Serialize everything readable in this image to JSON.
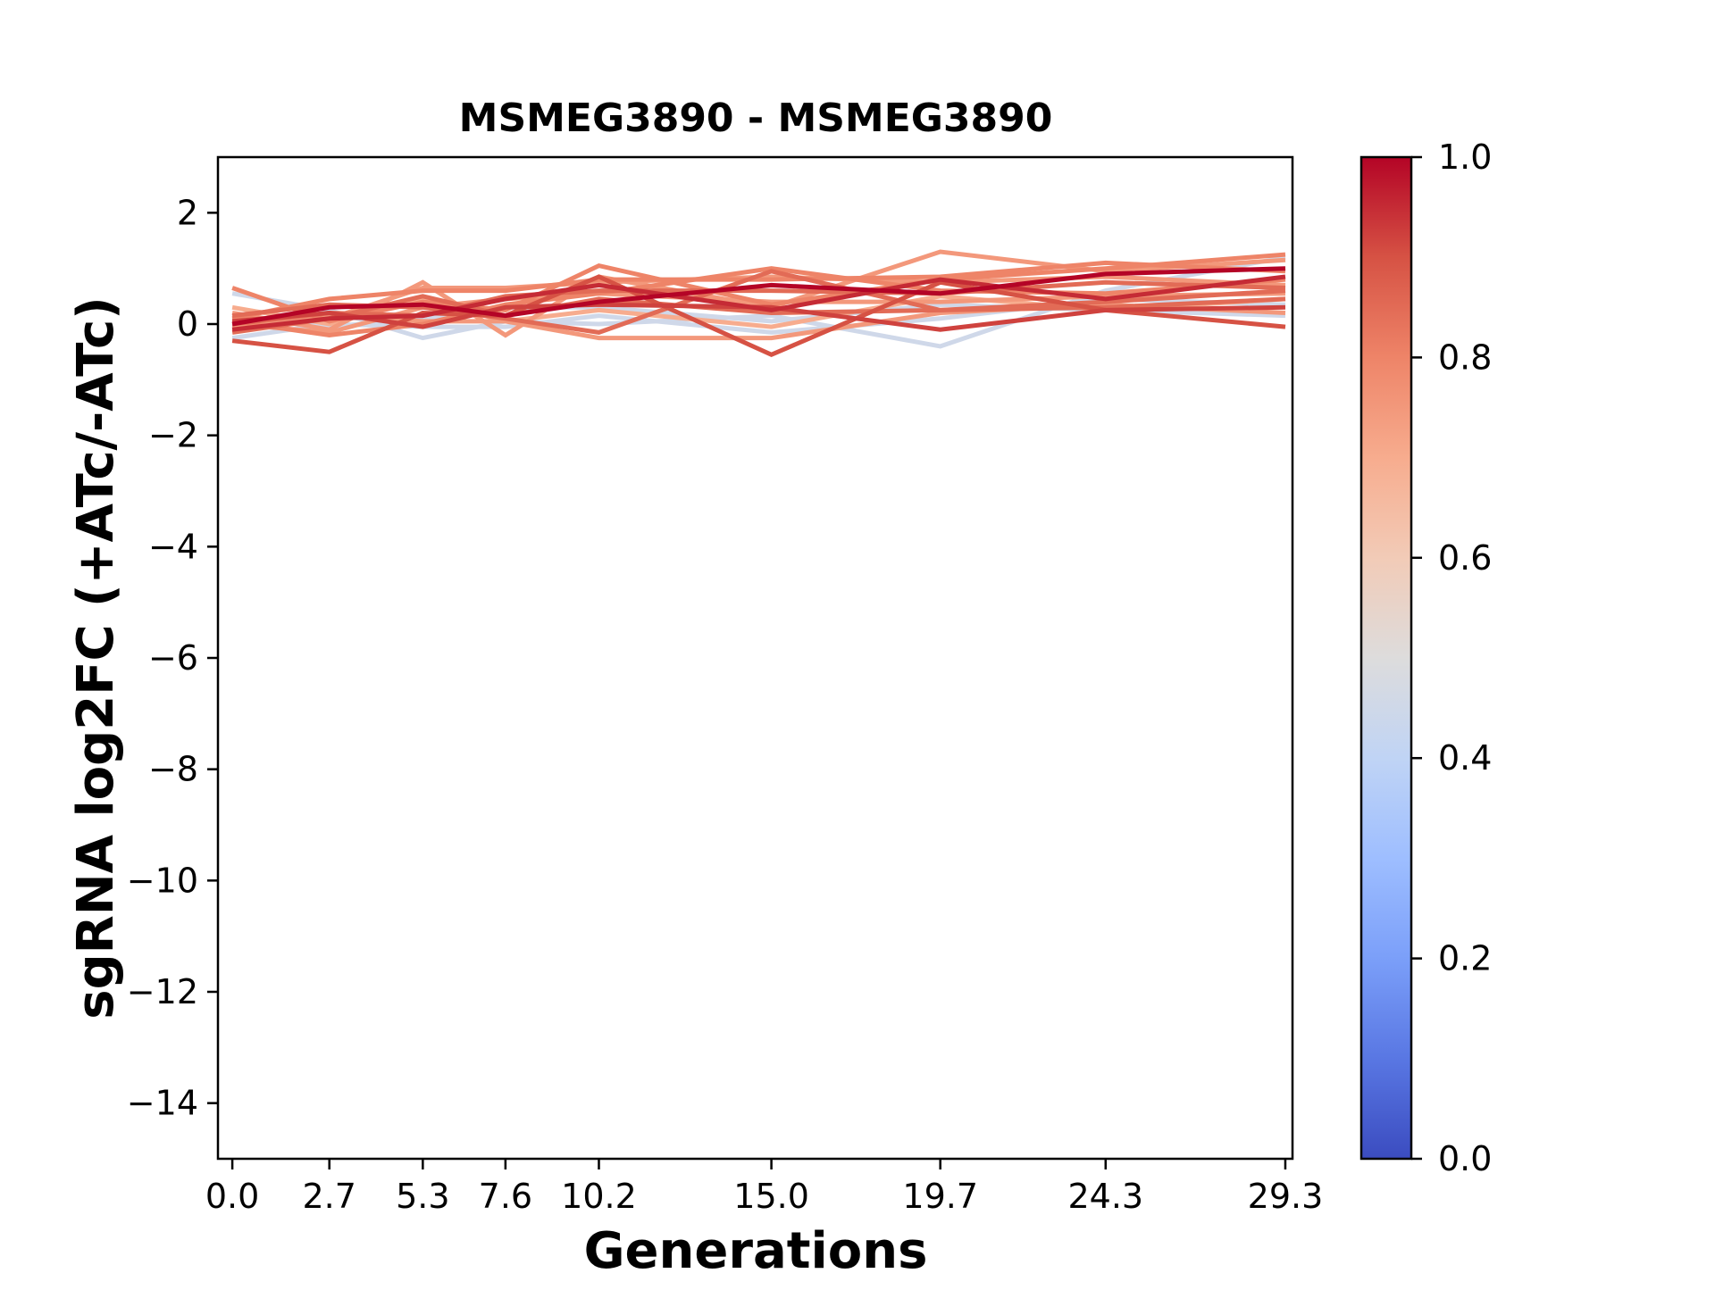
{
  "chart_data": {
    "type": "line",
    "title": "MSMEG3890 - MSMEG3890",
    "xlabel": "Generations",
    "ylabel": "sgRNA log2FC (+ATc/-ATc)",
    "x": [
      0.0,
      2.7,
      5.3,
      7.6,
      10.2,
      15.0,
      19.7,
      24.3,
      29.3
    ],
    "x_tick_labels": [
      "0.0",
      "2.7",
      "5.3",
      "7.6",
      "10.2",
      "15.0",
      "19.7",
      "24.3",
      "29.3"
    ],
    "xlim": [
      -0.4,
      29.5
    ],
    "ylim": [
      -15,
      3
    ],
    "y_ticks": [
      2,
      0,
      -2,
      -4,
      -6,
      -8,
      -10,
      -12,
      -14
    ],
    "y_tick_labels": [
      "2",
      "0",
      "−2",
      "−4",
      "−6",
      "−8",
      "−10",
      "−12",
      "−14"
    ],
    "grid": false,
    "colormap": "coolwarm",
    "colorbar": {
      "range": [
        0.0,
        1.0
      ],
      "ticks": [
        0.0,
        0.2,
        0.4,
        0.6,
        0.8,
        1.0
      ],
      "tick_labels": [
        "0.0",
        "0.2",
        "0.4",
        "0.6",
        "0.8",
        "1.0"
      ]
    },
    "series": [
      {
        "score": 0.45,
        "values": [
          0.55,
          0.25,
          -0.25,
          0.05,
          0.0,
          0.15,
          -0.4,
          0.6,
          1.2
        ]
      },
      {
        "score": 0.45,
        "values": [
          -0.25,
          0.0,
          -0.05,
          -0.05,
          0.15,
          -0.15,
          0.1,
          0.45,
          0.35
        ]
      },
      {
        "score": 0.45,
        "values": [
          0.1,
          -0.05,
          0.1,
          0.3,
          0.3,
          0.05,
          0.35,
          0.25,
          0.15
        ]
      },
      {
        "score": 0.7,
        "values": [
          0.3,
          0.0,
          0.45,
          0.05,
          0.25,
          -0.05,
          0.5,
          0.25,
          0.45
        ]
      },
      {
        "score": 0.75,
        "values": [
          0.2,
          -0.1,
          0.75,
          -0.2,
          0.85,
          0.3,
          1.3,
          0.95,
          1.15
        ]
      },
      {
        "score": 0.75,
        "values": [
          -0.05,
          0.1,
          0.65,
          0.65,
          0.75,
          0.85,
          0.75,
          0.85,
          0.7
        ]
      },
      {
        "score": 0.75,
        "values": [
          0.0,
          -0.15,
          0.3,
          0.45,
          0.55,
          0.4,
          0.4,
          0.5,
          0.55
        ]
      },
      {
        "score": 0.75,
        "values": [
          -0.1,
          0.15,
          0.05,
          0.05,
          -0.25,
          -0.25,
          0.2,
          0.35,
          0.2
        ]
      },
      {
        "score": 0.8,
        "values": [
          0.1,
          0.45,
          0.6,
          0.6,
          0.8,
          0.8,
          0.85,
          1.1,
          0.95
        ]
      },
      {
        "score": 0.8,
        "values": [
          0.65,
          0.05,
          0.4,
          0.25,
          1.05,
          0.35,
          0.8,
          1.0,
          1.25
        ]
      },
      {
        "score": 0.8,
        "values": [
          0.05,
          -0.2,
          0.0,
          0.35,
          0.55,
          1.0,
          0.6,
          0.55,
          0.8
        ]
      },
      {
        "score": 0.85,
        "values": [
          0.15,
          0.35,
          0.3,
          0.1,
          -0.15,
          0.95,
          0.25,
          0.4,
          0.6
        ]
      },
      {
        "score": 0.85,
        "values": [
          -0.15,
          0.1,
          0.5,
          0.15,
          0.45,
          0.2,
          0.25,
          0.3,
          0.45
        ]
      },
      {
        "score": 0.85,
        "values": [
          0.0,
          0.2,
          0.15,
          0.5,
          0.6,
          0.6,
          0.55,
          0.75,
          0.65
        ]
      },
      {
        "score": 0.9,
        "values": [
          -0.3,
          -0.5,
          0.2,
          0.15,
          0.85,
          -0.55,
          0.75,
          0.25,
          -0.05
        ]
      },
      {
        "score": 0.92,
        "values": [
          0.05,
          0.2,
          -0.05,
          0.3,
          0.35,
          0.3,
          -0.1,
          0.25,
          0.3
        ]
      },
      {
        "score": 0.95,
        "values": [
          -0.1,
          0.1,
          0.15,
          0.45,
          0.7,
          0.25,
          0.8,
          0.45,
          0.85
        ]
      },
      {
        "score": 1.0,
        "values": [
          0.0,
          0.3,
          0.35,
          0.15,
          0.4,
          0.7,
          0.55,
          0.9,
          1.0
        ]
      }
    ]
  }
}
